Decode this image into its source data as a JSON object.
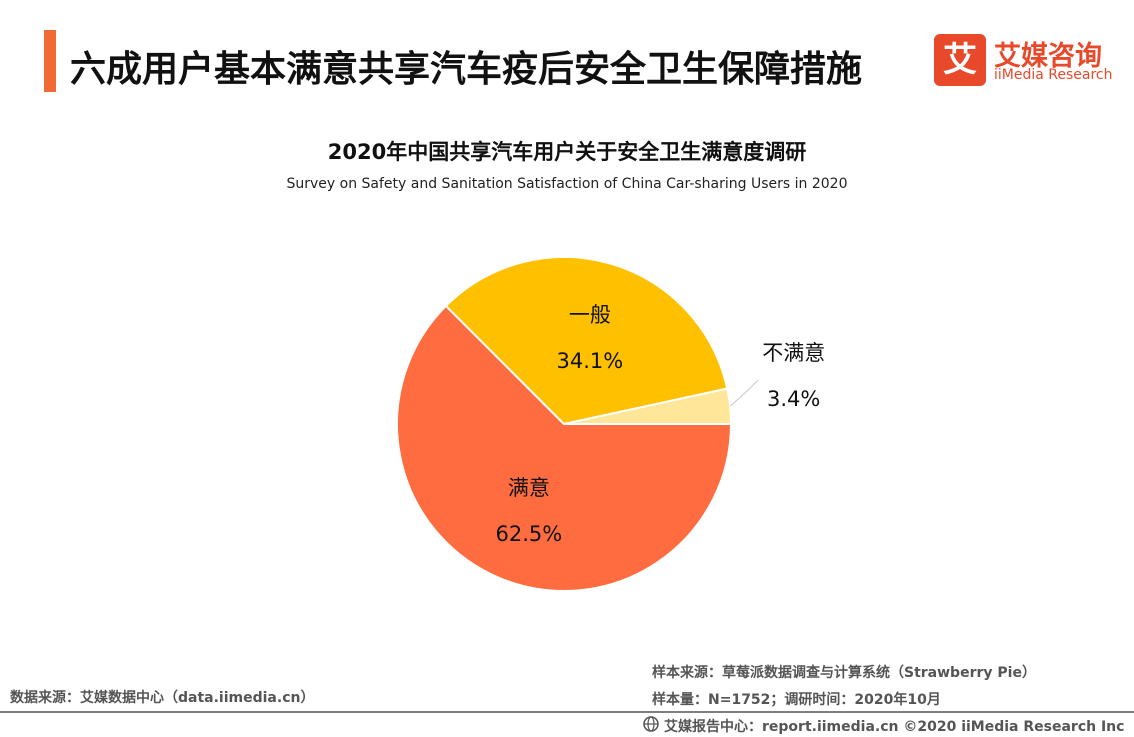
{
  "header": {
    "title": "六成用户基本满意共享汽车疫后安全卫生保障措施",
    "accent_color": "#f06a35"
  },
  "logo": {
    "mark_char": "艾",
    "name_cn": "艾媒咨询",
    "name_en": "iiMedia Research",
    "color": "#e8492a"
  },
  "chart_data": {
    "type": "pie",
    "title": "2020年中国共享汽车用户关于安全卫生满意度调研",
    "subtitle": "Survey on Safety and Sanitation Satisfaction of China Car-sharing  Users in 2020",
    "slices": [
      {
        "label": "满意",
        "value": 62.5,
        "value_label": "62.5%",
        "color": "#ff6c3f"
      },
      {
        "label": "一般",
        "value": 34.1,
        "value_label": "34.1%",
        "color": "#ffc000"
      },
      {
        "label": "不满意",
        "value": 3.4,
        "value_label": "3.4%",
        "color": "#ffe699"
      }
    ]
  },
  "footer": {
    "data_source": "数据来源：艾媒数据中心（data.iimedia.cn）",
    "sample_source": "样本来源：草莓派数据调查与计算系统（Strawberry Pie）",
    "sample_size": "样本量：N=1752；调研时间：2020年10月",
    "report_center": "艾媒报告中心：report.iimedia.cn ©2020  iiMedia Research  Inc"
  }
}
